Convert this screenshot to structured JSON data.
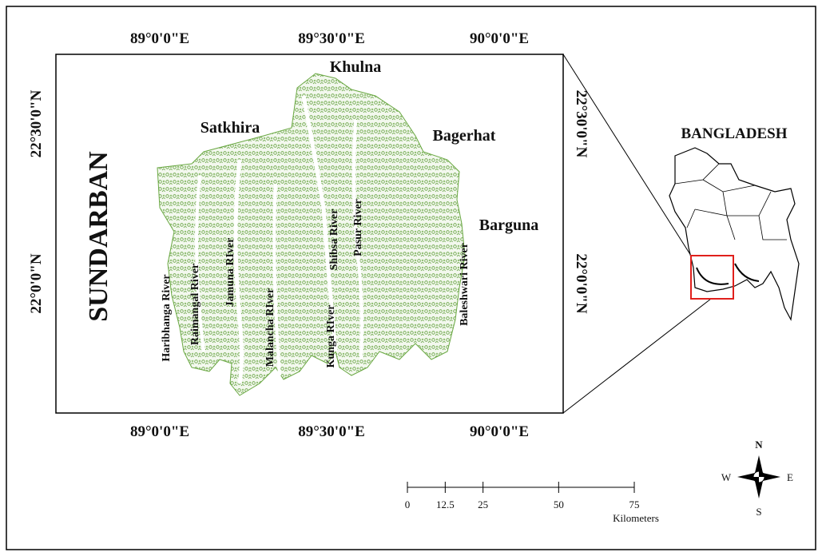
{
  "map": {
    "top_longitudes": [
      "89°0'0\"E",
      "89°30'0\"E",
      "90°0'0\"E"
    ],
    "bottom_longitudes": [
      "89°0'0\"E",
      "89°30'0\"E",
      "90°0'0\"E"
    ],
    "left_latitudes": [
      "22°30'0\"N",
      "22°0'0\"N"
    ],
    "right_latitudes": [
      "22°30'0\"N",
      "22°0'0\"N"
    ],
    "region_label": "SUNDARBAN",
    "places": [
      "Khulna",
      "Satkhira",
      "Bagerhat",
      "Barguna"
    ],
    "rivers": [
      "Haribhanga River",
      "Raimangal River",
      "Jamuna RIver",
      "Malancha RIver",
      "Kunga RIver",
      "Shibsa River",
      "Pasur River",
      "Baleshwari River"
    ],
    "inset_title": "BANGLADESH",
    "scale_bar": {
      "ticks": [
        0,
        12.5,
        25,
        50,
        75
      ],
      "unit": "Kilometers"
    },
    "compass": {
      "north": "N",
      "east": "E",
      "south": "S",
      "west": "W"
    }
  }
}
